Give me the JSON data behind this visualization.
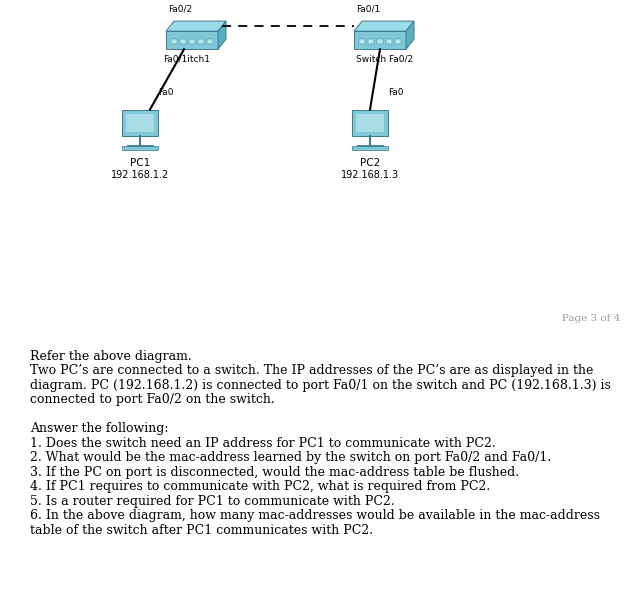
{
  "page_label": "Page 3 of 4",
  "sw1_label_below": "Fa0/1itch1",
  "sw2_label_below": "Switch Fa0/2",
  "sw1_port_top": "Fa0/2",
  "sw2_port_top": "Fa0/1",
  "pc1_port": "Fa0",
  "pc2_port": "Fa0",
  "pc1_label": "PC1",
  "pc2_label": "PC2",
  "pc1_ip": "192.168.1.2",
  "pc2_ip": "192.168.1.3",
  "intro_line1": "Refer the above diagram.",
  "intro_line2": "Two PC’s are connected to a switch. The IP addresses of the PC’s are as displayed in the",
  "intro_line3": "diagram. PC (192.168.1.2) is connected to port Fa0/1 on the switch and PC (192.168.1.3) is",
  "intro_line4": "connected to port Fa0/2 on the switch.",
  "answer_heading": "Answer the following:",
  "answer_lines": [
    "1. Does the switch need an IP address for PC1 to communicate with PC2.",
    "2. What would be the mac-address learned by the switch on port Fa0/2 and Fa0/1.",
    "3. If the PC on port is disconnected, would the mac-address table be flushed.",
    "4. If PC1 requires to communicate with PC2, what is required from PC2.",
    "5. Is a router required for PC1 to communicate with PC2.",
    "6. In the above diagram, how many mac-addresses would be available in the mac-address",
    "table of the switch after PC1 communicates with PC2."
  ],
  "colors": {
    "switch_face": "#7ec8d8",
    "switch_top": "#9adde8",
    "switch_right": "#5ab0c0",
    "switch_edge": "#3a7a8a",
    "pc_body": "#7ec8d8",
    "pc_screen_inner": "#a8dde8",
    "pc_edge": "#3a7a8a",
    "line_color": "#000000",
    "dashed_color": "#000000",
    "text_color": "#000000",
    "page_label_color": "#999999",
    "separator_color": "#c8c8c8",
    "background": "#ffffff"
  }
}
